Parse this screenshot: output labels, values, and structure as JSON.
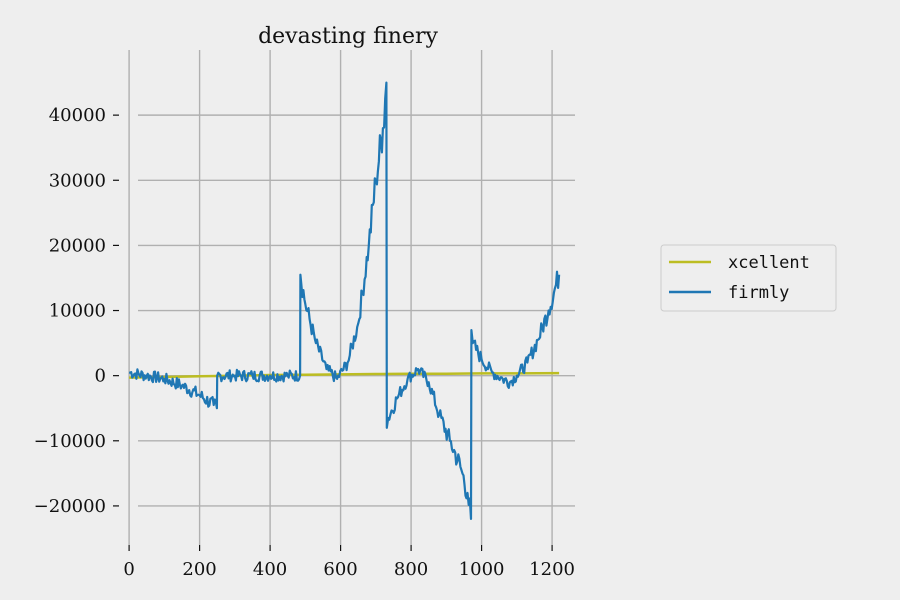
{
  "chart_data": {
    "type": "line",
    "title": "devasting finery",
    "xlabel": "",
    "ylabel": "",
    "xlim": [
      -40,
      1265
    ],
    "ylim": [
      -26000,
      50000
    ],
    "xticks": [
      0,
      200,
      400,
      600,
      800,
      1000,
      1200
    ],
    "yticks": [
      -20000,
      -10000,
      0,
      10000,
      20000,
      30000,
      40000
    ],
    "xtick_labels": [
      "0",
      "200",
      "400",
      "600",
      "800",
      "1000",
      "1200"
    ],
    "ytick_labels": [
      "−20000",
      "−10000",
      "0",
      "10000",
      "20000",
      "30000",
      "40000"
    ],
    "grid": true,
    "legend_position": "right (outside plot)",
    "series": [
      {
        "name": "xcellent",
        "color": "#bcbd22",
        "x": [
          0,
          100,
          200,
          300,
          400,
          500,
          600,
          700,
          800,
          900,
          1000,
          1100,
          1220
        ],
        "y": [
          -300,
          -200,
          -100,
          0,
          100,
          150,
          200,
          250,
          300,
          300,
          350,
          350,
          400
        ]
      },
      {
        "name": "firmly",
        "color": "#1f77b4",
        "x": [
          0,
          50,
          100,
          150,
          200,
          240,
          249,
          250,
          300,
          350,
          400,
          450,
          485,
          486,
          500,
          530,
          560,
          590,
          620,
          650,
          680,
          700,
          720,
          730,
          731,
          735,
          760,
          790,
          820,
          850,
          880,
          910,
          940,
          960,
          970,
          971,
          975,
          1000,
          1030,
          1060,
          1080,
          1100,
          1130,
          1160,
          1190,
          1220
        ],
        "y": [
          500,
          0,
          -500,
          -1500,
          -3000,
          -4500,
          -5000,
          0,
          0,
          0,
          0,
          0,
          0,
          15500,
          11000,
          5000,
          1000,
          -500,
          2000,
          8000,
          20000,
          30000,
          38000,
          45000,
          -8000,
          -6500,
          -3500,
          -500,
          1000,
          -1000,
          -6000,
          -10000,
          -14000,
          -18000,
          -22000,
          7000,
          5000,
          2500,
          500,
          -500,
          -1000,
          0,
          2000,
          5500,
          10000,
          15500
        ]
      }
    ]
  }
}
